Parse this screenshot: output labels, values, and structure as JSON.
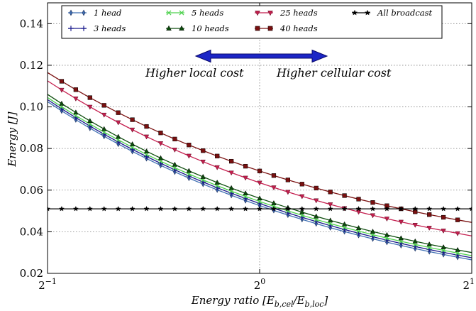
{
  "chart_data": {
    "type": "line",
    "title": "",
    "xlabel": "Energy ratio [E_b,cel / E_b,loc]",
    "ylabel": "Energy [J]",
    "x_scale": "log2",
    "xlim": [
      0.5,
      2
    ],
    "ylim": [
      0.02,
      0.15
    ],
    "x_ticks": [
      {
        "value": 0.5,
        "base": "2",
        "exp": "−1"
      },
      {
        "value": 1,
        "base": "2",
        "exp": "0"
      },
      {
        "value": 2,
        "base": "2",
        "exp": "1"
      }
    ],
    "y_ticks": [
      "0.02",
      "0.04",
      "0.06",
      "0.08",
      "0.10",
      "0.12",
      "0.14"
    ],
    "y_tick_values": [
      0.02,
      0.04,
      0.06,
      0.08,
      0.1,
      0.12,
      0.14
    ],
    "grid": true,
    "legend_position": "top",
    "annotations": {
      "left_text": "Higher local cost",
      "right_text": "Higher cellular cost"
    },
    "series": [
      {
        "name": "1 head",
        "color": "#3f6fb3",
        "marker": "thin_diamond",
        "y_start": 0.1025,
        "y_end": 0.0265
      },
      {
        "name": "3 heads",
        "color": "#1a1a8c",
        "marker": "plus",
        "y_start": 0.1035,
        "y_end": 0.0275
      },
      {
        "name": "5 heads",
        "color": "#4fd24f",
        "marker": "x",
        "y_start": 0.1045,
        "y_end": 0.0285
      },
      {
        "name": "10 heads",
        "color": "#0d4d0d",
        "marker": "triangle_up",
        "y_start": 0.106,
        "y_end": 0.03
      },
      {
        "name": "25 heads",
        "color": "#c41e4e",
        "marker": "triangle_down",
        "y_start": 0.1125,
        "y_end": 0.038
      },
      {
        "name": "40 heads",
        "color": "#7a1010",
        "marker": "square",
        "y_start": 0.1165,
        "y_end": 0.0445
      },
      {
        "name": "All broadcast",
        "color": "#000000",
        "marker": "star",
        "y_start": 0.051,
        "y_end": 0.051
      }
    ]
  }
}
